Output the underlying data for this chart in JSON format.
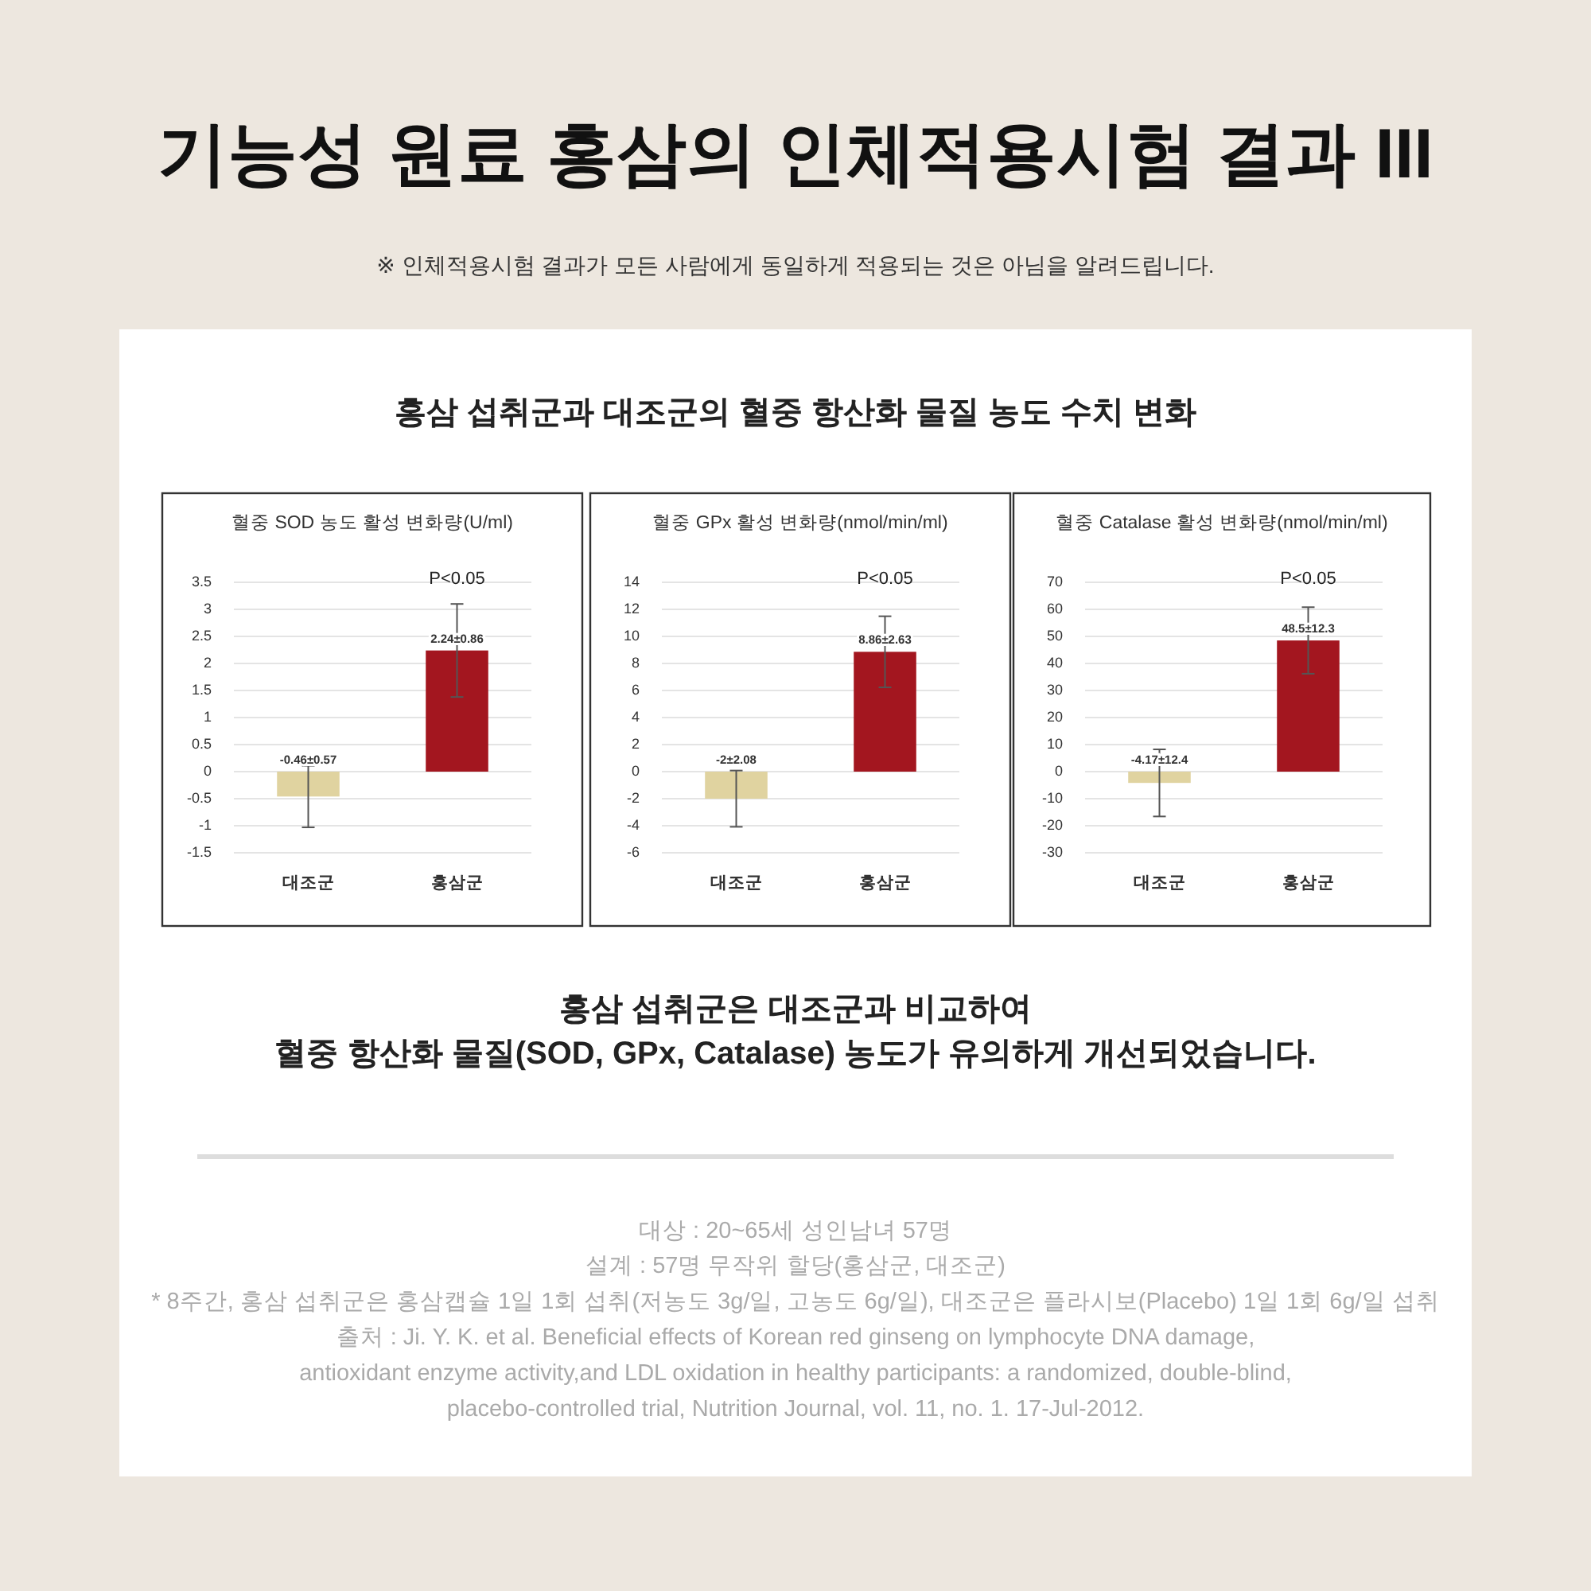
{
  "chart_data": [
    {
      "type": "other",
      "title": "기능성 원료 홍삼의 인체적용시험 결과 III",
      "subtitle": "※ 인체적용시험 결과가 모든 사람에게 동일하게 적용되는 것은 아님을 알려드립니다.",
      "annotations": [
        "홍삼 섭취군과 대조군의 혈중 항산화 물질 농도 수치 변화"
      ]
    },
    {
      "type": "bar",
      "title": "혈중 SOD 농도 활성 변화량(U/ml)",
      "categories": [
        "대조군",
        "홍삼군"
      ],
      "values": [
        -0.46,
        2.24
      ],
      "colors": [
        "#e0d3a0",
        "#a3161f"
      ],
      "errors": [
        0.57,
        0.86
      ],
      "value_labels": [
        "-0.46±0.57",
        "2.24±0.86"
      ],
      "ylim": [
        -1.5,
        3.5
      ],
      "yticks": [
        {
          "value": -1.5,
          "label": "-1.5"
        },
        {
          "value": -1,
          "label": "-1"
        },
        {
          "value": -0.5,
          "label": "-0.5"
        },
        0,
        0.5,
        1,
        1.5,
        2,
        2.5,
        3,
        3.5
      ],
      "grid": "y",
      "annotations": [
        "P<0.05"
      ]
    },
    {
      "type": "bar",
      "title": "혈중 GPx 활성 변화량(nmol/min/ml)",
      "categories": [
        "대조군",
        "홍삼군"
      ],
      "values": [
        -2,
        8.86
      ],
      "colors": [
        "#e0d3a0",
        "#a3161f"
      ],
      "errors": [
        2.08,
        2.63
      ],
      "value_labels": [
        "-2±2.08",
        "8.86±2.63"
      ],
      "ylim": [
        -6,
        14
      ],
      "yticks": [
        {
          "value": -6,
          "label": "-6"
        },
        {
          "value": -4,
          "label": "-4"
        },
        {
          "value": -2,
          "label": "-2"
        },
        0,
        2,
        4,
        6,
        8,
        10,
        12,
        14
      ],
      "grid": "y",
      "annotations": [
        "P<0.05"
      ]
    },
    {
      "type": "bar",
      "title": "혈중 Catalase 활성 변화량(nmol/min/ml)",
      "categories": [
        "대조군",
        "홍삼군"
      ],
      "values": [
        -4.17,
        48.5
      ],
      "colors": [
        "#e0d3a0",
        "#a3161f"
      ],
      "errors": [
        12.4,
        12.3
      ],
      "value_labels": [
        "-4.17±12.4",
        "48.5±12.3"
      ],
      "ylim": [
        -30,
        70
      ],
      "yticks": [
        {
          "value": -30,
          "label": "-30"
        },
        {
          "value": -20,
          "label": "-20"
        },
        {
          "value": -10,
          "label": "-10"
        },
        0,
        10,
        20,
        30,
        40,
        50,
        60,
        70
      ],
      "grid": "y",
      "annotations": [
        "P<0.05"
      ]
    },
    {
      "type": "other",
      "annotations": [
        "홍삼 섭취군은 대조군과 비교하여",
        "혈중 항산화 물질(SOD, GPx, Catalase) 농도가 유의하게 개선되었습니다.",
        "대상 : 20~65세 성인남녀 57명",
        "설계 : 57명 무작위 할당(홍삼군, 대조군)",
        "* 8주간, 홍삼 섭취군은 홍삼캡슐 1일 1회 섭취(저농도 3g/일, 고농도 6g/일), 대조군은 플라시보(Placebo) 1일 1회 6g/일 섭취",
        "출처 : Ji. Y. K. et al. Beneficial effects of Korean red ginseng on lymphocyte DNA damage,",
        "antioxidant enzyme activity,and LDL oxidation in healthy participants: a randomized, double-blind,",
        "placebo-controlled trial, Nutrition Journal, vol. 11, no. 1. 17-Jul-2012."
      ]
    }
  ]
}
